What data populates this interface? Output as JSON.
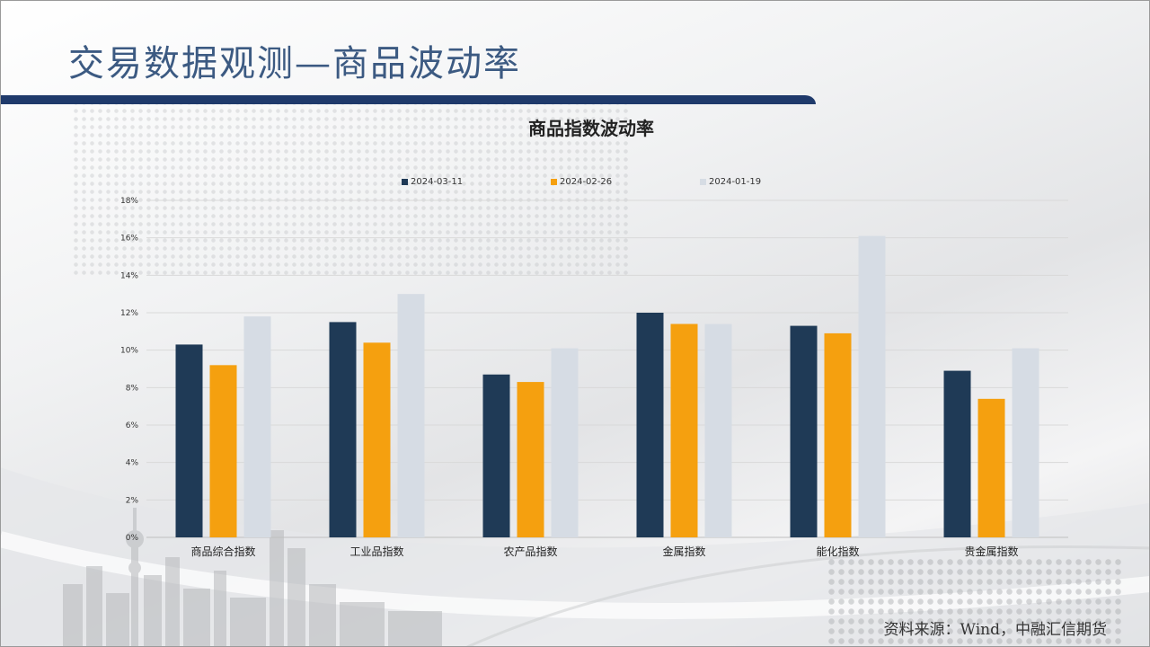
{
  "slide": {
    "title": "交易数据观测—商品波动率",
    "source": "资料来源：Wind，中融汇信期货"
  },
  "colors": {
    "series1": "#1f3a56",
    "series2": "#f5a00f",
    "series3": "#d6dce4",
    "title_text": "#3c5a82",
    "title_bar": "#1f3a6b"
  },
  "chart_data": {
    "type": "bar",
    "title": "商品指数波动率",
    "categories": [
      "商品综合指数",
      "工业品指数",
      "农产品指数",
      "金属指数",
      "能化指数",
      "贵金属指数"
    ],
    "series": [
      {
        "name": "2024-03-11",
        "values": [
          10.3,
          11.5,
          8.7,
          12.0,
          11.3,
          8.9
        ]
      },
      {
        "name": "2024-02-26",
        "values": [
          9.2,
          10.4,
          8.3,
          11.4,
          10.9,
          7.4
        ]
      },
      {
        "name": "2024-01-19",
        "values": [
          11.8,
          13.0,
          10.1,
          11.4,
          16.1,
          10.1
        ]
      }
    ],
    "ylim": [
      0,
      18
    ],
    "yticks": [
      "0%",
      "2%",
      "4%",
      "6%",
      "8%",
      "10%",
      "12%",
      "14%",
      "16%",
      "18%"
    ],
    "ytick_values": [
      0,
      2,
      4,
      6,
      8,
      10,
      12,
      14,
      16,
      18
    ],
    "grid": true,
    "legend_position": "top"
  }
}
